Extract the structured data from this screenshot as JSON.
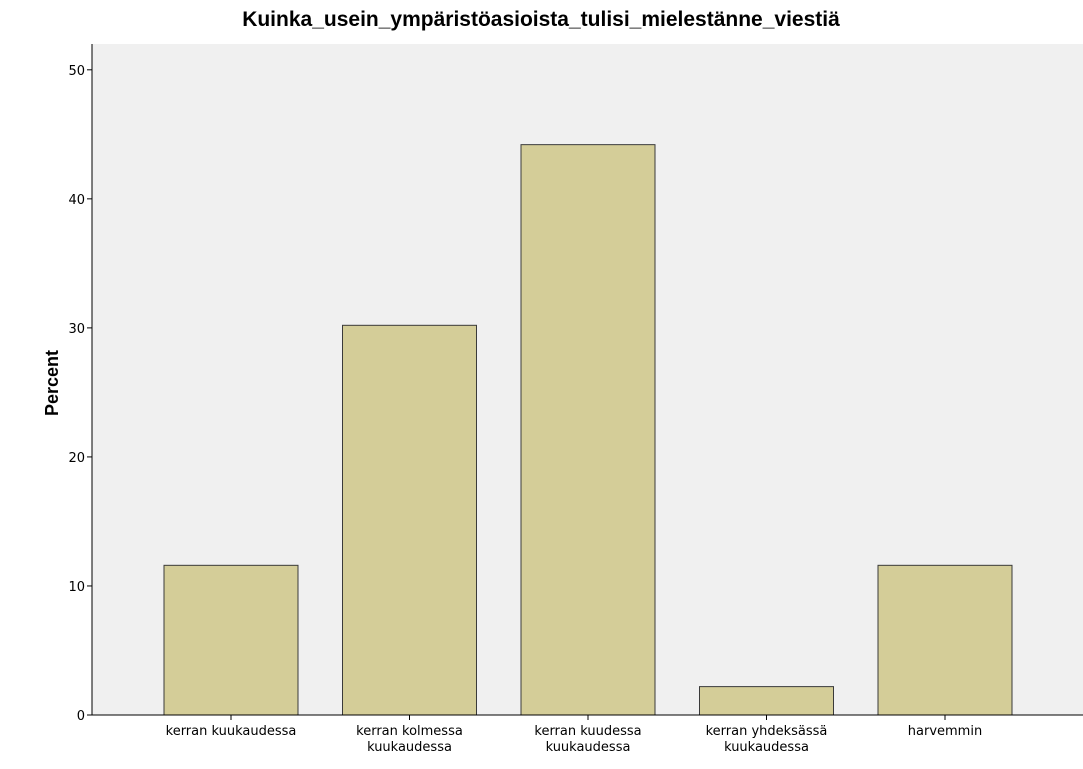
{
  "chart_data": {
    "type": "bar",
    "title": "Kuinka_usein_ympäristöasioista_tulisi_mielestänne_viestiä",
    "xlabel": "",
    "ylabel": "Percent",
    "ylim": [
      0,
      52
    ],
    "yticks": [
      "0",
      "10",
      "20",
      "30",
      "40",
      "50"
    ],
    "categories": [
      [
        "kerran kuukaudessa"
      ],
      [
        "kerran kolmessa",
        "kuukaudessa"
      ],
      [
        "kerran kuudessa",
        "kuukaudessa"
      ],
      [
        "kerran yhdeksässä",
        "kuukaudessa"
      ],
      [
        "harvemmin"
      ]
    ],
    "values": [
      11.6,
      30.2,
      44.2,
      2.2,
      11.6
    ],
    "grid": false,
    "colors": {
      "bar_fill": "#d4cd98",
      "bar_stroke": "#3a3a3a",
      "plot_background": "#f0f0f0",
      "axis": "#000000"
    }
  }
}
